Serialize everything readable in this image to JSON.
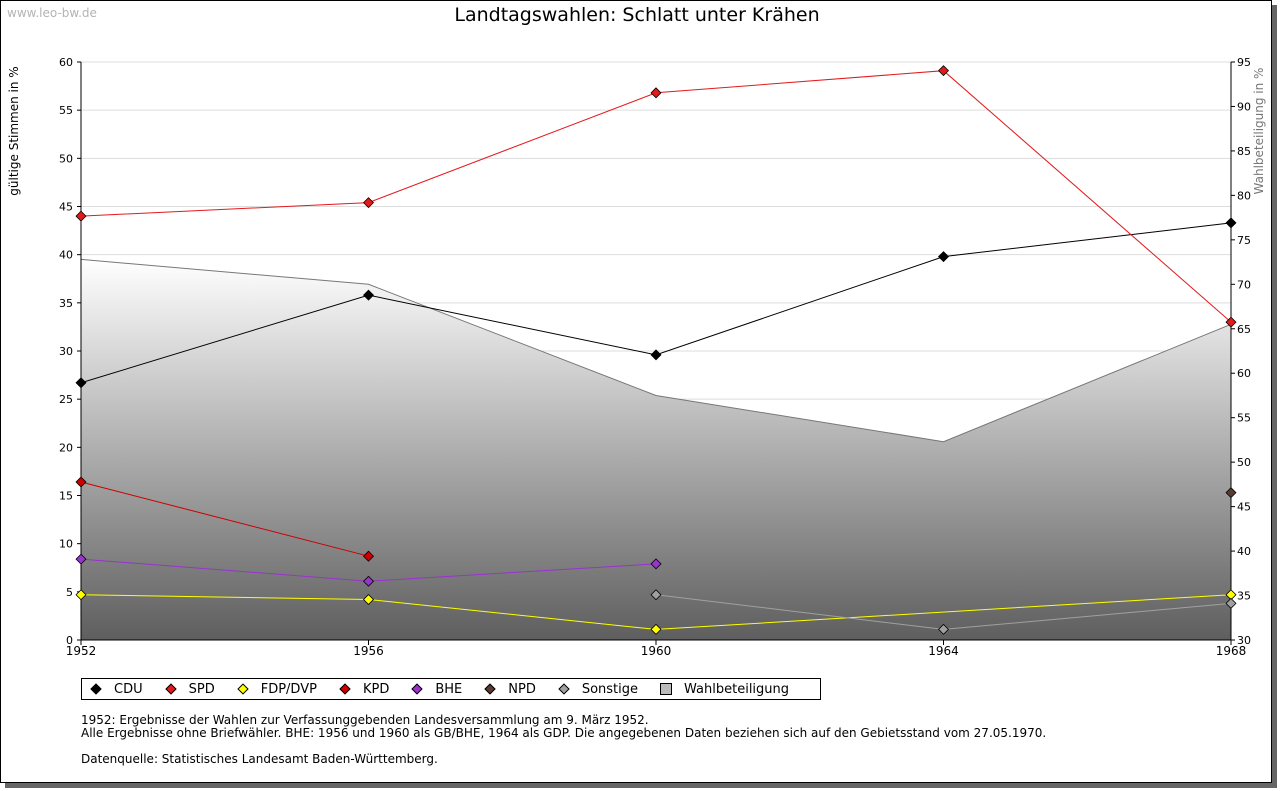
{
  "watermark": "www.leo-bw.de",
  "chart_data": {
    "type": "line",
    "title": "Landtagswahlen: Schlatt unter Krähen",
    "ylabel": "gültige Stimmen in %",
    "y2label": "Wahlbeteiligung in %",
    "x": [
      1952,
      1956,
      1960,
      1964,
      1968
    ],
    "ylim": [
      0,
      60
    ],
    "y2lim": [
      30,
      95
    ],
    "yticks": [
      0,
      5,
      10,
      15,
      20,
      25,
      30,
      35,
      40,
      45,
      50,
      55,
      60
    ],
    "y2ticks": [
      30,
      35,
      40,
      45,
      50,
      55,
      60,
      65,
      70,
      75,
      80,
      85,
      90,
      95
    ],
    "series": [
      {
        "name": "CDU",
        "color": "#000000",
        "values": [
          26.7,
          35.8,
          29.6,
          39.8,
          43.3
        ]
      },
      {
        "name": "SPD",
        "color": "#e31a1c",
        "values": [
          44.0,
          45.4,
          56.8,
          59.1,
          33.0
        ]
      },
      {
        "name": "FDP/DVP",
        "color": "#ffff00",
        "values": [
          4.7,
          4.2,
          1.1,
          null,
          4.7
        ]
      },
      {
        "name": "KPD",
        "color": "#cc0000",
        "values": [
          16.4,
          8.7,
          null,
          null,
          null
        ]
      },
      {
        "name": "BHE",
        "color": "#9933cc",
        "values": [
          8.4,
          6.1,
          7.9,
          null,
          null
        ]
      },
      {
        "name": "NPD",
        "color": "#5a3b30",
        "values": [
          null,
          null,
          null,
          null,
          15.3
        ]
      },
      {
        "name": "Sonstige",
        "color": "#a0a0a0",
        "values": [
          null,
          null,
          4.7,
          1.1,
          3.8
        ]
      }
    ],
    "turnout": {
      "name": "Wahlbeteiligung",
      "color": "#bbbbbb",
      "values": [
        72.8,
        70.0,
        57.5,
        52.3,
        65.5
      ]
    }
  },
  "notes": {
    "line1": "1952: Ergebnisse der Wahlen zur Verfassunggebenden Landesversammlung am 9. März 1952.",
    "line2": "Alle Ergebnisse ohne Briefwähler. BHE: 1956 und 1960 als GB/BHE, 1964 als GDP. Die angegebenen Daten beziehen sich auf den Gebietsstand vom 27.05.1970.",
    "source": "Datenquelle: Statistisches Landesamt Baden-Württemberg."
  }
}
